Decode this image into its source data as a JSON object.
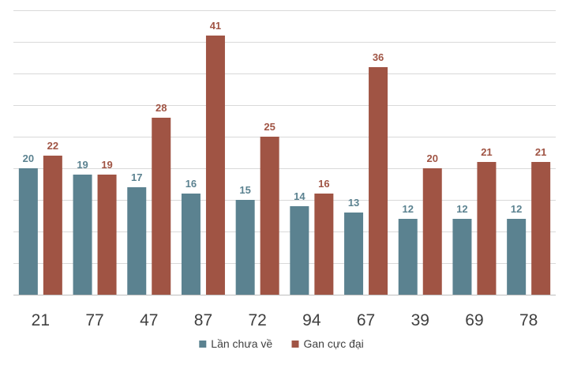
{
  "chart_data": {
    "type": "bar",
    "categories": [
      "21",
      "77",
      "47",
      "87",
      "72",
      "94",
      "67",
      "39",
      "69",
      "78"
    ],
    "series": [
      {
        "name": "Lần chưa về",
        "color": "#5b8290",
        "values": [
          20,
          19,
          17,
          16,
          15,
          14,
          13,
          12,
          12,
          12
        ]
      },
      {
        "name": "Gan cực đại",
        "color": "#a05444",
        "values": [
          22,
          19,
          28,
          41,
          25,
          16,
          36,
          20,
          21,
          21
        ]
      }
    ],
    "ylim": [
      0,
      45
    ],
    "grid": true,
    "legend": "bottom",
    "data_labels": true
  }
}
